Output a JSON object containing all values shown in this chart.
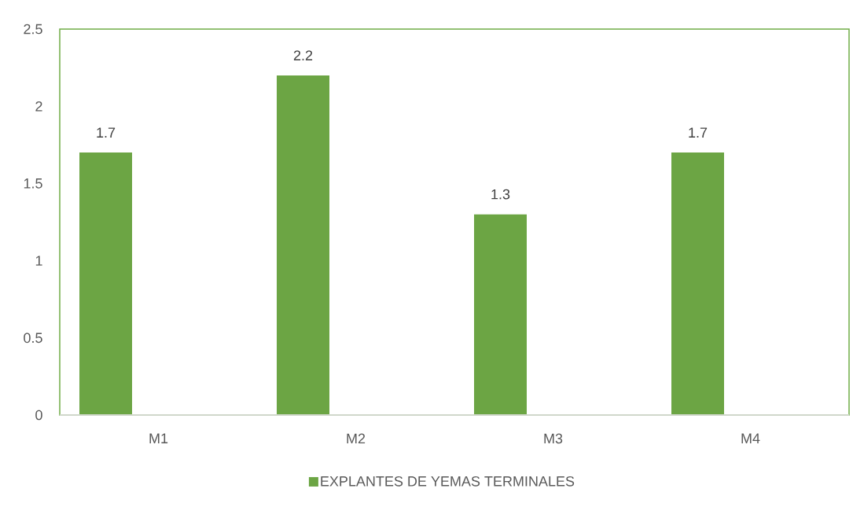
{
  "chart_data": {
    "type": "bar",
    "categories": [
      "M1",
      "M2",
      "M3",
      "M4"
    ],
    "series": [
      {
        "name": "EXPLANTES DE YEMAS TERMINALES",
        "color": "#6ca544",
        "values": [
          1.7,
          2.2,
          1.3,
          1.7
        ]
      }
    ],
    "ylim": [
      0,
      2.5
    ],
    "yticks": [
      0,
      0.5,
      1,
      1.5,
      2,
      2.5
    ],
    "data_labels": true,
    "legend": "bottom",
    "grid": false
  }
}
